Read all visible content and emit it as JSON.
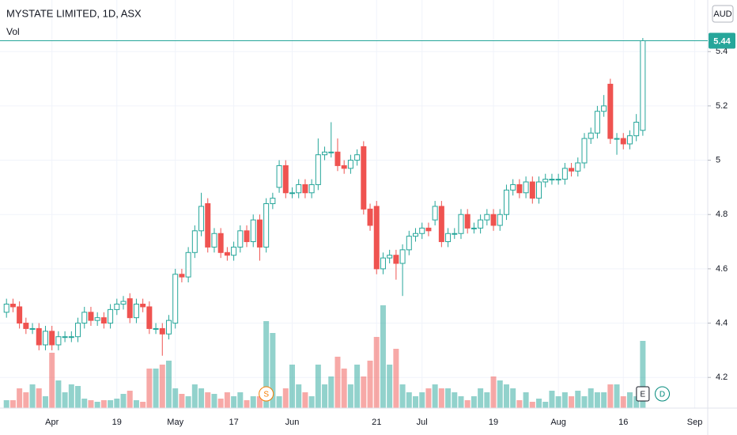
{
  "chart_data": {
    "type": "candlestick",
    "title": "MYSTATE LIMITED, 1D, ASX",
    "volume_label": "Vol",
    "currency": "AUD",
    "last_price": 5.44,
    "events": [
      "S",
      "E",
      "D"
    ],
    "up_color": "#26a69a",
    "down_color": "#ef5350",
    "grid": true,
    "ylim": [
      4.087,
      5.59
    ],
    "yticks": [
      4.2,
      4.4,
      4.6,
      4.8,
      5.0,
      5.2,
      5.4
    ],
    "xlim": [
      -1,
      108
    ],
    "xticks": [
      {
        "value": 7,
        "label": "Apr"
      },
      {
        "value": 17,
        "label": "19"
      },
      {
        "value": 26,
        "label": "May"
      },
      {
        "value": 35,
        "label": "17"
      },
      {
        "value": 44,
        "label": "Jun"
      },
      {
        "value": 57,
        "label": "21"
      },
      {
        "value": 64,
        "label": "Jul"
      },
      {
        "value": 75,
        "label": "19"
      },
      {
        "value": 85,
        "label": "Aug"
      },
      {
        "value": 95,
        "label": "16"
      },
      {
        "value": 106,
        "label": "Sep"
      }
    ],
    "vlim": [
      0,
      200
    ],
    "open": [
      4.44,
      4.47,
      4.46,
      4.4,
      4.38,
      4.38,
      4.32,
      4.37,
      4.32,
      4.35,
      4.35,
      4.35,
      4.4,
      4.44,
      4.41,
      4.42,
      4.4,
      4.45,
      4.47,
      4.49,
      4.42,
      4.47,
      4.46,
      4.38,
      4.38,
      4.36,
      4.4,
      4.58,
      4.57,
      4.66,
      4.74,
      4.84,
      4.68,
      4.73,
      4.66,
      4.65,
      4.68,
      4.74,
      4.7,
      4.78,
      4.68,
      4.84,
      4.9,
      4.98,
      4.88,
      4.88,
      4.91,
      4.88,
      4.91,
      5.02,
      5.03,
      5.03,
      4.98,
      4.97,
      5.0,
      5.05,
      4.82,
      4.83,
      4.6,
      4.64,
      4.65,
      4.62,
      4.67,
      4.72,
      4.73,
      4.75,
      4.78,
      4.83,
      4.7,
      4.73,
      4.73,
      4.8,
      4.75,
      4.75,
      4.78,
      4.8,
      4.76,
      4.8,
      4.89,
      4.91,
      4.88,
      4.92,
      4.86,
      4.92,
      4.93,
      4.93,
      4.93,
      4.97,
      4.96,
      4.99,
      5.08,
      5.1,
      5.18,
      5.28,
      5.08,
      5.08,
      5.06,
      5.09,
      5.11
    ],
    "high": [
      4.49,
      4.49,
      4.48,
      4.42,
      4.4,
      4.4,
      4.39,
      4.39,
      4.37,
      4.37,
      4.37,
      4.42,
      4.46,
      4.46,
      4.44,
      4.44,
      4.47,
      4.49,
      4.5,
      4.51,
      4.49,
      4.49,
      4.48,
      4.4,
      4.4,
      4.43,
      4.6,
      4.6,
      4.68,
      4.76,
      4.88,
      4.86,
      4.75,
      4.75,
      4.68,
      4.7,
      4.76,
      4.76,
      4.8,
      4.8,
      4.86,
      4.88,
      5.0,
      5.0,
      4.9,
      4.93,
      4.93,
      4.93,
      5.08,
      5.05,
      5.14,
      5.08,
      5.0,
      5.02,
      5.04,
      5.07,
      4.84,
      4.85,
      4.66,
      4.67,
      4.67,
      4.69,
      4.74,
      4.75,
      4.77,
      4.77,
      4.85,
      4.85,
      4.75,
      4.75,
      4.82,
      4.82,
      4.77,
      4.8,
      4.82,
      4.82,
      4.82,
      4.91,
      4.93,
      4.93,
      4.94,
      4.94,
      4.94,
      4.95,
      4.95,
      4.95,
      4.99,
      4.99,
      5.01,
      5.1,
      5.12,
      5.2,
      5.24,
      5.3,
      5.1,
      5.1,
      5.11,
      5.17,
      5.45
    ],
    "low": [
      4.42,
      4.44,
      4.38,
      4.36,
      4.36,
      4.3,
      4.3,
      4.3,
      4.3,
      4.33,
      4.33,
      4.33,
      4.38,
      4.39,
      4.39,
      4.38,
      4.38,
      4.43,
      4.45,
      4.4,
      4.4,
      4.44,
      4.36,
      4.36,
      4.28,
      4.34,
      4.38,
      4.55,
      4.55,
      4.64,
      4.72,
      4.66,
      4.66,
      4.64,
      4.63,
      4.63,
      4.66,
      4.68,
      4.68,
      4.63,
      4.66,
      4.82,
      4.88,
      4.86,
      4.86,
      4.86,
      4.86,
      4.86,
      4.89,
      5.0,
      5.01,
      4.96,
      4.95,
      4.95,
      4.98,
      4.8,
      4.74,
      4.58,
      4.58,
      4.62,
      4.56,
      4.5,
      4.65,
      4.7,
      4.71,
      4.72,
      4.76,
      4.68,
      4.68,
      4.71,
      4.71,
      4.73,
      4.73,
      4.73,
      4.76,
      4.74,
      4.74,
      4.78,
      4.87,
      4.86,
      4.86,
      4.84,
      4.84,
      4.9,
      4.91,
      4.91,
      4.91,
      4.94,
      4.94,
      4.97,
      5.06,
      5.08,
      5.16,
      5.06,
      5.02,
      5.04,
      5.04,
      5.07,
      5.09
    ],
    "close": [
      4.47,
      4.46,
      4.4,
      4.38,
      4.38,
      4.32,
      4.37,
      4.32,
      4.35,
      4.35,
      4.35,
      4.4,
      4.44,
      4.41,
      4.42,
      4.4,
      4.45,
      4.47,
      4.48,
      4.42,
      4.47,
      4.46,
      4.38,
      4.38,
      4.36,
      4.41,
      4.58,
      4.57,
      4.66,
      4.74,
      4.83,
      4.68,
      4.73,
      4.66,
      4.65,
      4.68,
      4.74,
      4.7,
      4.78,
      4.68,
      4.84,
      4.86,
      4.98,
      4.88,
      4.88,
      4.91,
      4.88,
      4.91,
      5.02,
      5.03,
      5.03,
      4.98,
      4.97,
      5.0,
      5.02,
      4.82,
      4.76,
      4.6,
      4.64,
      4.65,
      4.62,
      4.67,
      4.72,
      4.73,
      4.75,
      4.74,
      4.83,
      4.7,
      4.73,
      4.73,
      4.8,
      4.75,
      4.75,
      4.78,
      4.8,
      4.76,
      4.8,
      4.89,
      4.91,
      4.88,
      4.92,
      4.86,
      4.92,
      4.93,
      4.93,
      4.93,
      4.97,
      4.96,
      4.99,
      5.08,
      5.1,
      5.18,
      5.2,
      5.08,
      5.08,
      5.06,
      5.09,
      5.14,
      5.44
    ],
    "volume": [
      10,
      10,
      25,
      20,
      30,
      25,
      15,
      70,
      35,
      20,
      30,
      28,
      12,
      10,
      8,
      10,
      10,
      12,
      18,
      22,
      10,
      8,
      50,
      50,
      55,
      60,
      25,
      18,
      15,
      30,
      25,
      20,
      18,
      12,
      20,
      15,
      20,
      10,
      15,
      15,
      110,
      95,
      15,
      25,
      55,
      30,
      20,
      15,
      55,
      30,
      40,
      65,
      50,
      30,
      55,
      40,
      60,
      90,
      130,
      55,
      75,
      30,
      20,
      15,
      20,
      25,
      30,
      25,
      25,
      20,
      15,
      10,
      15,
      25,
      20,
      40,
      35,
      30,
      25,
      10,
      20,
      8,
      12,
      8,
      22,
      15,
      20,
      15,
      22,
      15,
      25,
      20,
      20,
      30,
      30,
      15,
      20,
      15,
      85
    ]
  }
}
